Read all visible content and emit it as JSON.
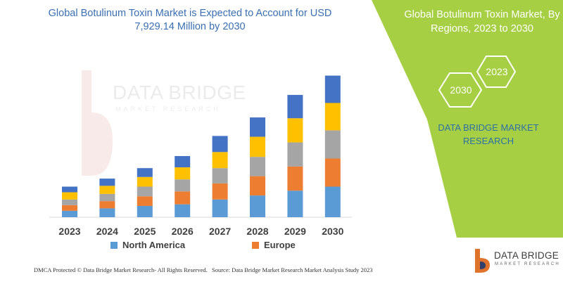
{
  "title": "Global Botulinum Toxin Market is Expected to Account for USD 7,929.14 Million by 2030",
  "panel": {
    "title": "Global Botulinum Toxin Market, By Regions, 2023 to 2030",
    "hex_year_front": "2030",
    "hex_year_back": "2023",
    "brand": "DATA BRIDGE MARKET RESEARCH",
    "background": "#a6cf44"
  },
  "legend": [
    {
      "name": "North America",
      "color": "#5b9bd5"
    },
    {
      "name": "Europe",
      "color": "#ed7d31"
    }
  ],
  "footer": {
    "left": "DMCA Protected © Data Bridge Market Research- All Rights Reserved.",
    "right": "Source: Data Bridge Market Research Market Analysis Study 2023"
  },
  "watermark": {
    "name": "DATA BRIDGE",
    "sub": "MARKET RESEARCH"
  },
  "logo": {
    "name": "DATA BRIDGE",
    "sub": "MARKET RESEARCH"
  },
  "chart_data": {
    "type": "bar",
    "stacked": true,
    "categories": [
      "2023",
      "2024",
      "2025",
      "2026",
      "2027",
      "2028",
      "2029",
      "2030"
    ],
    "series": [
      {
        "name": "North America",
        "color": "#5b9bd5",
        "values": [
          8,
          11,
          14,
          16,
          22,
          27,
          33,
          38
        ]
      },
      {
        "name": "Europe",
        "color": "#ed7d31",
        "values": [
          7,
          9,
          12,
          16,
          20,
          24,
          30,
          35
        ]
      },
      {
        "name": "",
        "color": "#a5a5a5",
        "values": [
          7,
          9,
          12,
          15,
          19,
          24,
          30,
          35
        ]
      },
      {
        "name": "",
        "color": "#ffc000",
        "values": [
          9,
          10,
          12,
          15,
          20,
          25,
          30,
          34
        ]
      },
      {
        "name": "",
        "color": "#4472c4",
        "values": [
          7,
          9,
          11,
          14,
          20,
          24,
          29,
          34
        ]
      }
    ],
    "xlabel": "",
    "ylabel": "",
    "ylim": [
      0,
      180
    ],
    "grid": false,
    "legend_position": "bottom"
  }
}
